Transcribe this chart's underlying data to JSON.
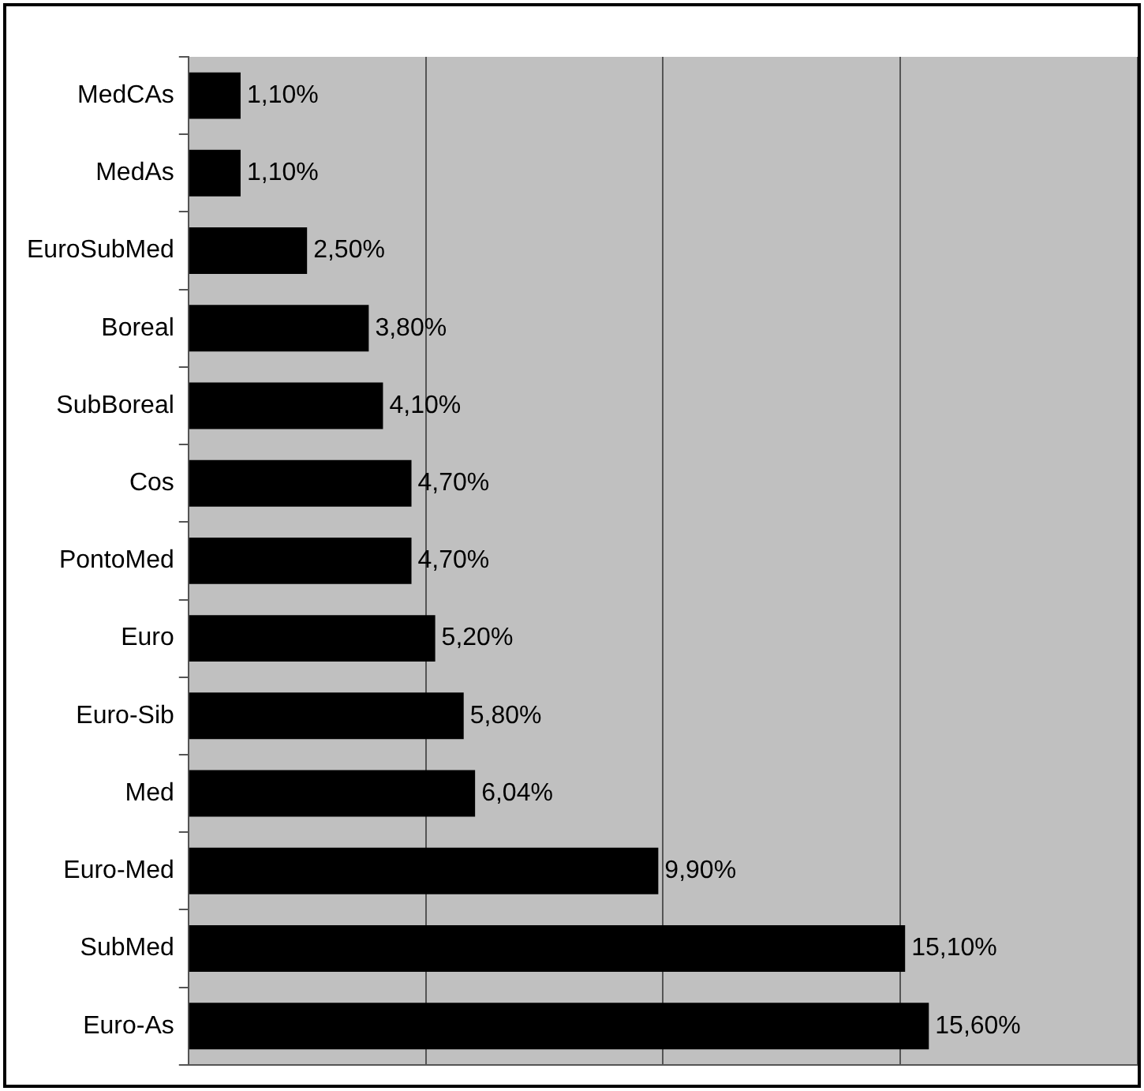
{
  "chart_data": {
    "type": "bar",
    "orientation": "horizontal",
    "categories": [
      "MedCAs",
      "MedAs",
      "EuroSubMed",
      "Boreal",
      "SubBoreal",
      "Cos",
      "PontoMed",
      "Euro",
      "Euro-Sib",
      "Med",
      "Euro-Med",
      "SubMed",
      "Euro-As"
    ],
    "values": [
      1.1,
      1.1,
      2.5,
      3.8,
      4.1,
      4.7,
      4.7,
      5.2,
      5.8,
      6.04,
      9.9,
      15.1,
      15.6
    ],
    "value_labels": [
      "1,10%",
      "1,10%",
      "2,50%",
      "3,80%",
      "4,10%",
      "4,70%",
      "4,70%",
      "5,20%",
      "5,80%",
      "6,04%",
      "9,90%",
      "15,10%",
      "15,60%"
    ],
    "color": "#000000",
    "xlim": [
      0,
      20
    ],
    "xticks": [
      {
        "value": 0,
        "label": null
      },
      {
        "value": 5,
        "label": null
      },
      {
        "value": 10,
        "label": null
      },
      {
        "value": 15,
        "label": null
      },
      {
        "value": 20,
        "label": null
      }
    ],
    "grid": "x",
    "tick_labels": "y"
  }
}
